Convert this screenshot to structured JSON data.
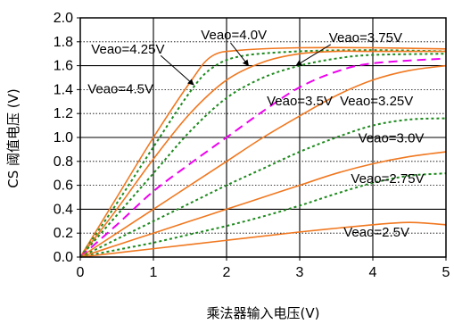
{
  "chart_data": {
    "type": "line",
    "title": "",
    "xlabel": "乘法器输入电压(V)",
    "ylabel": "CS 阈值电压 (V)",
    "xlim": [
      0,
      5
    ],
    "ylim": [
      0,
      2.0
    ],
    "xticks": [
      0,
      1,
      2,
      3,
      4,
      5
    ],
    "yticks": [
      0.0,
      0.2,
      0.4,
      0.6,
      0.8,
      1.0,
      1.2,
      1.4,
      1.6,
      1.8,
      2.0
    ],
    "ytick_labels": [
      "0.0",
      "0.2",
      "0.4",
      "0.6",
      "0.8",
      "1.0",
      "1.2",
      "1.4",
      "1.6",
      "1.8",
      "2.0"
    ],
    "grid": {
      "major_solid_y": [
        0.4,
        1.0,
        1.6
      ],
      "dotted_y": [
        0.2,
        0.6,
        0.8,
        1.2,
        1.4,
        1.8
      ],
      "major_solid_x": [
        1,
        2,
        3,
        4
      ]
    },
    "colors": {
      "orange": "#f07820",
      "green": "#1e8a1e",
      "magenta": "#ee00ee",
      "axis": "#000000",
      "grid": "#000000"
    },
    "series": [
      {
        "name": "Veao=4.5V",
        "color": "orange",
        "style": "solid",
        "x": [
          0,
          0.5,
          1.0,
          1.5,
          1.8,
          2.2,
          3,
          4,
          5
        ],
        "y": [
          0,
          0.5,
          1.0,
          1.46,
          1.68,
          1.73,
          1.75,
          1.75,
          1.74
        ]
      },
      {
        "name": "Veao=4.25V",
        "color": "green",
        "style": "dotted",
        "x": [
          0,
          0.5,
          1.0,
          1.5,
          1.8,
          2.2,
          3,
          4,
          5
        ],
        "y": [
          0,
          0.45,
          0.92,
          1.38,
          1.58,
          1.68,
          1.72,
          1.73,
          1.72
        ]
      },
      {
        "name": "Veao=4.0V",
        "color": "orange",
        "style": "solid",
        "x": [
          0,
          0.5,
          1.0,
          1.5,
          2.0,
          2.5,
          3,
          3.5,
          4,
          5
        ],
        "y": [
          0,
          0.4,
          0.82,
          1.2,
          1.48,
          1.63,
          1.7,
          1.72,
          1.72,
          1.72
        ]
      },
      {
        "name": "Veao=3.75V",
        "color": "green",
        "style": "dotted",
        "x": [
          0,
          0.5,
          1.0,
          1.5,
          2.0,
          2.5,
          3,
          3.5,
          4,
          5
        ],
        "y": [
          0,
          0.35,
          0.7,
          1.05,
          1.33,
          1.5,
          1.6,
          1.66,
          1.69,
          1.7
        ]
      },
      {
        "name": "Veao=3.5V",
        "color": "magenta",
        "style": "dashed",
        "x": [
          0,
          0.5,
          1.0,
          1.5,
          2.0,
          2.5,
          3,
          3.5,
          4,
          5
        ],
        "y": [
          0,
          0.27,
          0.55,
          0.78,
          1.0,
          1.22,
          1.42,
          1.55,
          1.62,
          1.66
        ]
      },
      {
        "name": "Veao=3.25V",
        "color": "orange",
        "style": "solid",
        "x": [
          0,
          0.5,
          1.0,
          1.5,
          2.0,
          2.5,
          3,
          3.5,
          4,
          4.5,
          5
        ],
        "y": [
          0,
          0.2,
          0.4,
          0.6,
          0.8,
          1.0,
          1.18,
          1.35,
          1.48,
          1.56,
          1.6
        ]
      },
      {
        "name": "Veao=3.0V",
        "color": "green",
        "style": "dotted",
        "x": [
          0,
          0.5,
          1.0,
          1.5,
          2.0,
          2.5,
          3,
          3.5,
          4,
          4.5,
          5
        ],
        "y": [
          0,
          0.15,
          0.3,
          0.45,
          0.6,
          0.74,
          0.88,
          1.0,
          1.1,
          1.15,
          1.16
        ]
      },
      {
        "name": "Veao=2.75V",
        "color": "orange",
        "style": "solid",
        "x": [
          0,
          0.5,
          1.0,
          1.5,
          2.0,
          2.5,
          3,
          3.5,
          4,
          4.5,
          5
        ],
        "y": [
          0,
          0.1,
          0.2,
          0.3,
          0.4,
          0.5,
          0.6,
          0.7,
          0.78,
          0.84,
          0.88
        ]
      },
      {
        "name": "Veao=2.75V",
        "color": "green",
        "style": "dotted",
        "x": [
          0,
          0.5,
          1.0,
          1.5,
          2.0,
          2.5,
          3,
          3.5,
          4,
          4.5,
          5
        ],
        "y": [
          0,
          0.06,
          0.12,
          0.19,
          0.26,
          0.34,
          0.43,
          0.53,
          0.62,
          0.68,
          0.7
        ]
      },
      {
        "name": "Veao=2.5V",
        "color": "orange",
        "style": "solid",
        "x": [
          0,
          1,
          2,
          3,
          4,
          4.5,
          5
        ],
        "y": [
          0,
          0.07,
          0.14,
          0.21,
          0.27,
          0.29,
          0.27
        ]
      }
    ],
    "annotations": [
      {
        "text": "Veao=4.25V",
        "x": 0.15,
        "y": 1.7,
        "arrow_to": [
          1.55,
          1.44
        ]
      },
      {
        "text": "Veao=4.0V",
        "x": 1.65,
        "y": 1.82,
        "arrow_to": [
          2.3,
          1.6
        ]
      },
      {
        "text": "Veao=3.75V",
        "x": 3.4,
        "y": 1.8,
        "arrow_to": [
          2.95,
          1.6
        ]
      },
      {
        "text": "Veao=4.5V",
        "x": 0.1,
        "y": 1.37,
        "arrow_to": null
      },
      {
        "text": "Veao=3.5V",
        "x": 2.55,
        "y": 1.27,
        "arrow_to": null
      },
      {
        "text": "Veao=3.25V",
        "x": 3.55,
        "y": 1.27,
        "arrow_to": null
      },
      {
        "text": "Veao=3.0V",
        "x": 3.8,
        "y": 0.96,
        "arrow_to": null
      },
      {
        "text": "Veao=2.75V",
        "x": 3.7,
        "y": 0.62,
        "arrow_to": null
      },
      {
        "text": "Veao=2.5V",
        "x": 3.6,
        "y": 0.17,
        "arrow_to": null
      }
    ]
  }
}
